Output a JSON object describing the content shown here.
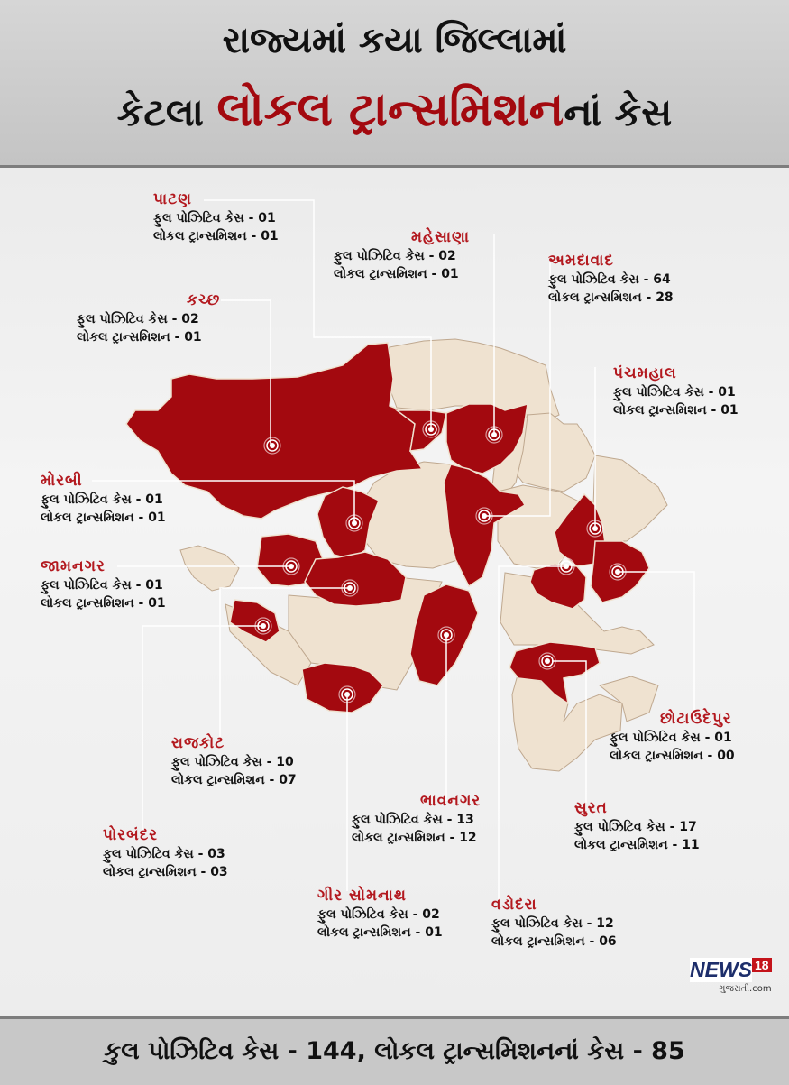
{
  "header": {
    "line1": "રાજ્યમાં કયા જિલ્લામાં",
    "line2_prefix": "કેટલા ",
    "line2_highlight": "લોકલ ટ્રાન્સમિશન",
    "line2_suffix": "નાં કેસ"
  },
  "districts": [
    {
      "id": "patan",
      "name": "પાટણ",
      "positive": "ફુલ પોઝિટિવ કેસ - 01",
      "local": "લોકલ ટ્રાન્સમિશન - 01"
    },
    {
      "id": "mehsana",
      "name": "મહેસાણા",
      "positive": "ફુલ પોઝિટિવ કેસ - 02",
      "local": "લોકલ ટ્રાન્સમિશન - 01"
    },
    {
      "id": "ahmedabad",
      "name": "અમદાવાદ",
      "positive": "ફુલ પોઝિટિવ કેસ - 64",
      "local": "લોકલ ટ્રાન્સમિશન - 28"
    },
    {
      "id": "kutch",
      "name": "કચ્છ",
      "positive": "ફુલ પોઝિટિવ કેસ  - 02",
      "local": "લોકલ ટ્રાન્સમિશન - 01"
    },
    {
      "id": "panchmahal",
      "name": "પંચમહાલ",
      "positive": "ફુલ પોઝિટિવ કેસ - 01",
      "local": "લોકલ ટ્રાન્સમિશન - 01"
    },
    {
      "id": "morbi",
      "name": "મોરબી",
      "positive": "ફુલ પોઝિટિવ કેસ - 01",
      "local": "લોકલ ટ્રાન્સમિશન - 01"
    },
    {
      "id": "jamnagar",
      "name": "જામનગર",
      "positive": "ફુલ પોઝિટિવ કેસ - 01",
      "local": "લોકલ ટ્રાન્સમિશન - 01"
    },
    {
      "id": "chhotaudepur",
      "name": "છોટાઉદેપુર",
      "positive": "ફુલ પોઝિટિવ કેસ - 01",
      "local": "લોકલ ટ્રાન્સમિશન - 00"
    },
    {
      "id": "rajkot",
      "name": "રાજકોટ",
      "positive": "ફુલ પોઝિટિવ કેસ - 10",
      "local": "લોકલ ટ્રાન્સમિશન - 07"
    },
    {
      "id": "bhavnagar",
      "name": "ભાવનગર",
      "positive": "ફુલ પોઝિટિવ કેસ  - 13",
      "local": "લોકલ ટ્રાન્સમિશન - 12"
    },
    {
      "id": "surat",
      "name": "સુરત",
      "positive": "ફુલ પોઝિટિવ કેસ - 17",
      "local": "લોકલ ટ્રાન્સમિશન - 11"
    },
    {
      "id": "porbandar",
      "name": "પોરબંદર",
      "positive": "ફુલ પોઝિટિવ કેસ  - 03",
      "local": "લોકલ ટ્રાન્સમિશન - 03"
    },
    {
      "id": "girsomnath",
      "name": "ગીર સોમનાથ",
      "positive": "ફુલ પોઝિટિવ કેસ  - 02",
      "local": "લોકલ ટ્રાન્સમિશન - 01"
    },
    {
      "id": "vadodara",
      "name": "વડોદરા",
      "positive": "ફુલ પોઝિટિવ કેસ - 12",
      "local": "લોકલ ટ્રાન્સમિશન - 06"
    }
  ],
  "footer": {
    "summary": "કુલ પોઝિટિવ કેસ - 144, લોકલ ટ્રાન્સમિશનનાં કેસ - 85"
  },
  "logo": {
    "brand": "NEWS",
    "number": "18",
    "subtitle": "ગુજરાતી.com"
  },
  "colors": {
    "affected": "#a3090f",
    "unaffected": "#efe2d0",
    "highlight_text": "#b3191f",
    "border": "#9c2a2a"
  }
}
